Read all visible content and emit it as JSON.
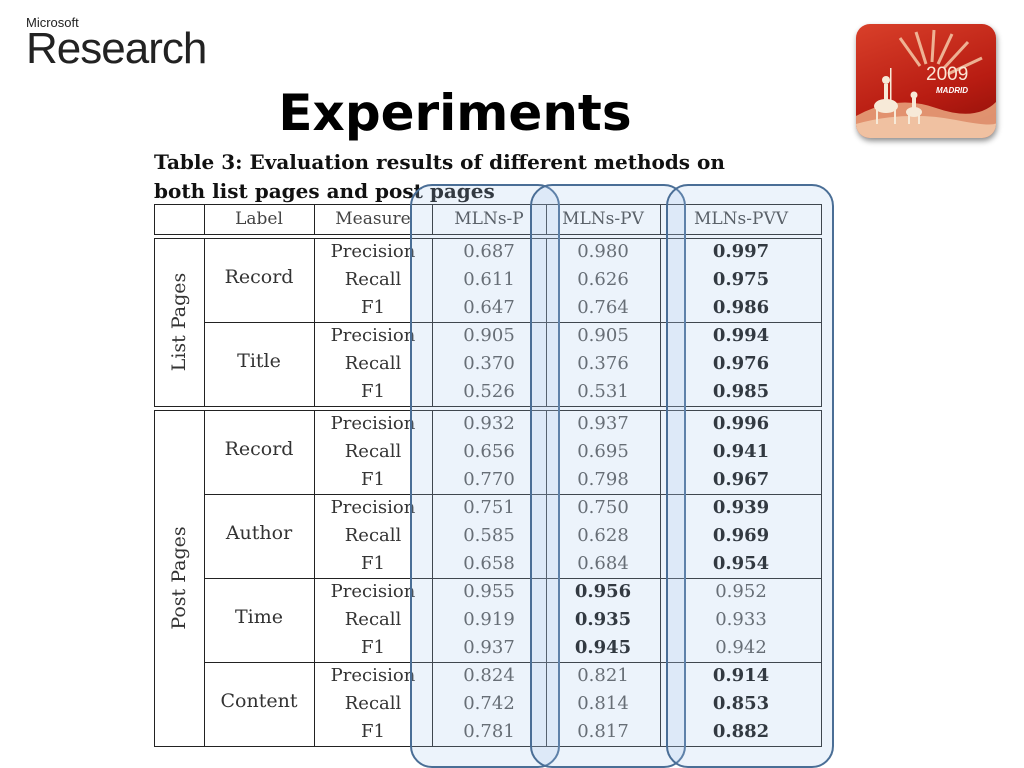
{
  "logo": {
    "company": "Microsoft",
    "division": "Research"
  },
  "badge": {
    "year": "2009",
    "city": "MADRID"
  },
  "title": "Experiments",
  "caption": {
    "line1": "Table 3: Evaluation results of different methods on",
    "line2": "both list pages and post pages"
  },
  "table": {
    "headers": [
      "Label",
      "Measure",
      "MLNs-P",
      "MLNs-PV",
      "MLNs-PVV"
    ],
    "groups": [
      {
        "name": "List Pages",
        "labels": [
          {
            "label": "Record",
            "rows": [
              {
                "measure": "Precision",
                "p": "0.687",
                "pv": "0.980",
                "pvv": "0.997",
                "bold": "pvv"
              },
              {
                "measure": "Recall",
                "p": "0.611",
                "pv": "0.626",
                "pvv": "0.975",
                "bold": "pvv"
              },
              {
                "measure": "F1",
                "p": "0.647",
                "pv": "0.764",
                "pvv": "0.986",
                "bold": "pvv"
              }
            ]
          },
          {
            "label": "Title",
            "rows": [
              {
                "measure": "Precision",
                "p": "0.905",
                "pv": "0.905",
                "pvv": "0.994",
                "bold": "pvv"
              },
              {
                "measure": "Recall",
                "p": "0.370",
                "pv": "0.376",
                "pvv": "0.976",
                "bold": "pvv"
              },
              {
                "measure": "F1",
                "p": "0.526",
                "pv": "0.531",
                "pvv": "0.985",
                "bold": "pvv"
              }
            ]
          }
        ]
      },
      {
        "name": "Post Pages",
        "labels": [
          {
            "label": "Record",
            "rows": [
              {
                "measure": "Precision",
                "p": "0.932",
                "pv": "0.937",
                "pvv": "0.996",
                "bold": "pvv"
              },
              {
                "measure": "Recall",
                "p": "0.656",
                "pv": "0.695",
                "pvv": "0.941",
                "bold": "pvv"
              },
              {
                "measure": "F1",
                "p": "0.770",
                "pv": "0.798",
                "pvv": "0.967",
                "bold": "pvv"
              }
            ]
          },
          {
            "label": "Author",
            "rows": [
              {
                "measure": "Precision",
                "p": "0.751",
                "pv": "0.750",
                "pvv": "0.939",
                "bold": "pvv"
              },
              {
                "measure": "Recall",
                "p": "0.585",
                "pv": "0.628",
                "pvv": "0.969",
                "bold": "pvv"
              },
              {
                "measure": "F1",
                "p": "0.658",
                "pv": "0.684",
                "pvv": "0.954",
                "bold": "pvv"
              }
            ]
          },
          {
            "label": "Time",
            "rows": [
              {
                "measure": "Precision",
                "p": "0.955",
                "pv": "0.956",
                "pvv": "0.952",
                "bold": "pv"
              },
              {
                "measure": "Recall",
                "p": "0.919",
                "pv": "0.935",
                "pvv": "0.933",
                "bold": "pv"
              },
              {
                "measure": "F1",
                "p": "0.937",
                "pv": "0.945",
                "pvv": "0.942",
                "bold": "pv"
              }
            ]
          },
          {
            "label": "Content",
            "rows": [
              {
                "measure": "Precision",
                "p": "0.824",
                "pv": "0.821",
                "pvv": "0.914",
                "bold": "pvv"
              },
              {
                "measure": "Recall",
                "p": "0.742",
                "pv": "0.814",
                "pvv": "0.853",
                "bold": "pvv"
              },
              {
                "measure": "F1",
                "p": "0.781",
                "pv": "0.817",
                "pvv": "0.882",
                "bold": "pvv"
              }
            ]
          }
        ]
      }
    ]
  },
  "colors": {
    "highlight_border": "#4a6e96",
    "highlight_fill": "#a8c8ec",
    "badge_red": "#c0271a"
  }
}
